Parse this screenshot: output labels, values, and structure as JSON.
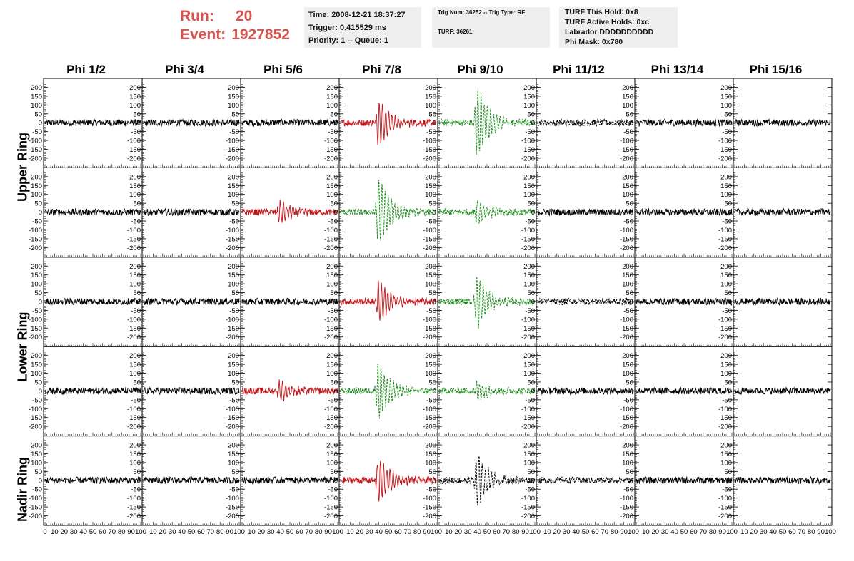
{
  "header": {
    "run_label": "Run:",
    "run_value": "20",
    "event_label": "Event:",
    "event_value": "1927852"
  },
  "info_panel_1": {
    "time": "Time: 2008-12-21 18:37:27",
    "trigger": "Trigger: 0.415529 ms",
    "priority": "Priority: 1 -- Queue: 1"
  },
  "info_panel_2": {
    "trig": "Trig Num: 36252 -- Trig Type: RF",
    "turf": "TURF: 36261"
  },
  "info_panel_3": {
    "hold": "TURF This Hold: 0x8",
    "active": "TURF Active Holds: 0xc",
    "labrador": "Labrador DDDDDDDDDD",
    "phimask": "Phi Mask: 0x780"
  },
  "columns": [
    "Phi 1/2",
    "Phi 3/4",
    "Phi 5/6",
    "Phi 7/8",
    "Phi 9/10",
    "Phi 11/12",
    "Phi 13/14",
    "Phi 15/16"
  ],
  "rings": [
    "Upper Ring",
    "Lower Ring",
    "Nadir Ring"
  ],
  "axes": {
    "y_ticks": [
      "200",
      "150",
      "100",
      "50",
      "0",
      "-50",
      "-100",
      "-150",
      "-200"
    ],
    "x_ticks_first": [
      "0",
      "10",
      "20",
      "30",
      "40",
      "50",
      "60",
      "70",
      "80",
      "90",
      "100"
    ],
    "x_ticks_other": [
      "10",
      "20",
      "30",
      "40",
      "50",
      "60",
      "70",
      "80",
      "90",
      "100"
    ]
  },
  "chart_data": {
    "type": "line",
    "xlim": [
      0,
      100
    ],
    "ylim": [
      -230,
      230
    ],
    "layout": "5 rows x 8 columns of waveform panels",
    "panels": [
      [
        "black",
        "black",
        "black",
        "red",
        "green-dashed",
        "black-dashed",
        "black",
        "black"
      ],
      [
        "black",
        "black",
        "red",
        "green-dashed",
        "green-dashed",
        "black",
        "black",
        "black"
      ],
      [
        "black",
        "black",
        "black",
        "red",
        "green-dashed",
        "black-dashed",
        "black",
        "black"
      ],
      [
        "black",
        "black",
        "red",
        "green-dashed",
        "green-dashed",
        "black",
        "black",
        "black"
      ],
      [
        "black",
        "black",
        "black",
        "red",
        "black-dashed",
        "black-dashed",
        "black",
        "black"
      ]
    ],
    "pulse_amplitude": [
      [
        0,
        0,
        0,
        130,
        210,
        0,
        0,
        0
      ],
      [
        0,
        0,
        60,
        200,
        70,
        0,
        0,
        0
      ],
      [
        0,
        0,
        0,
        120,
        150,
        0,
        0,
        0
      ],
      [
        0,
        0,
        60,
        160,
        60,
        0,
        0,
        0
      ],
      [
        0,
        0,
        0,
        130,
        150,
        0,
        0,
        0
      ]
    ],
    "pulse_center_x": 40,
    "colors": {
      "black": "#000000",
      "red": "#c0161a",
      "green": "#1a8a1a"
    }
  }
}
